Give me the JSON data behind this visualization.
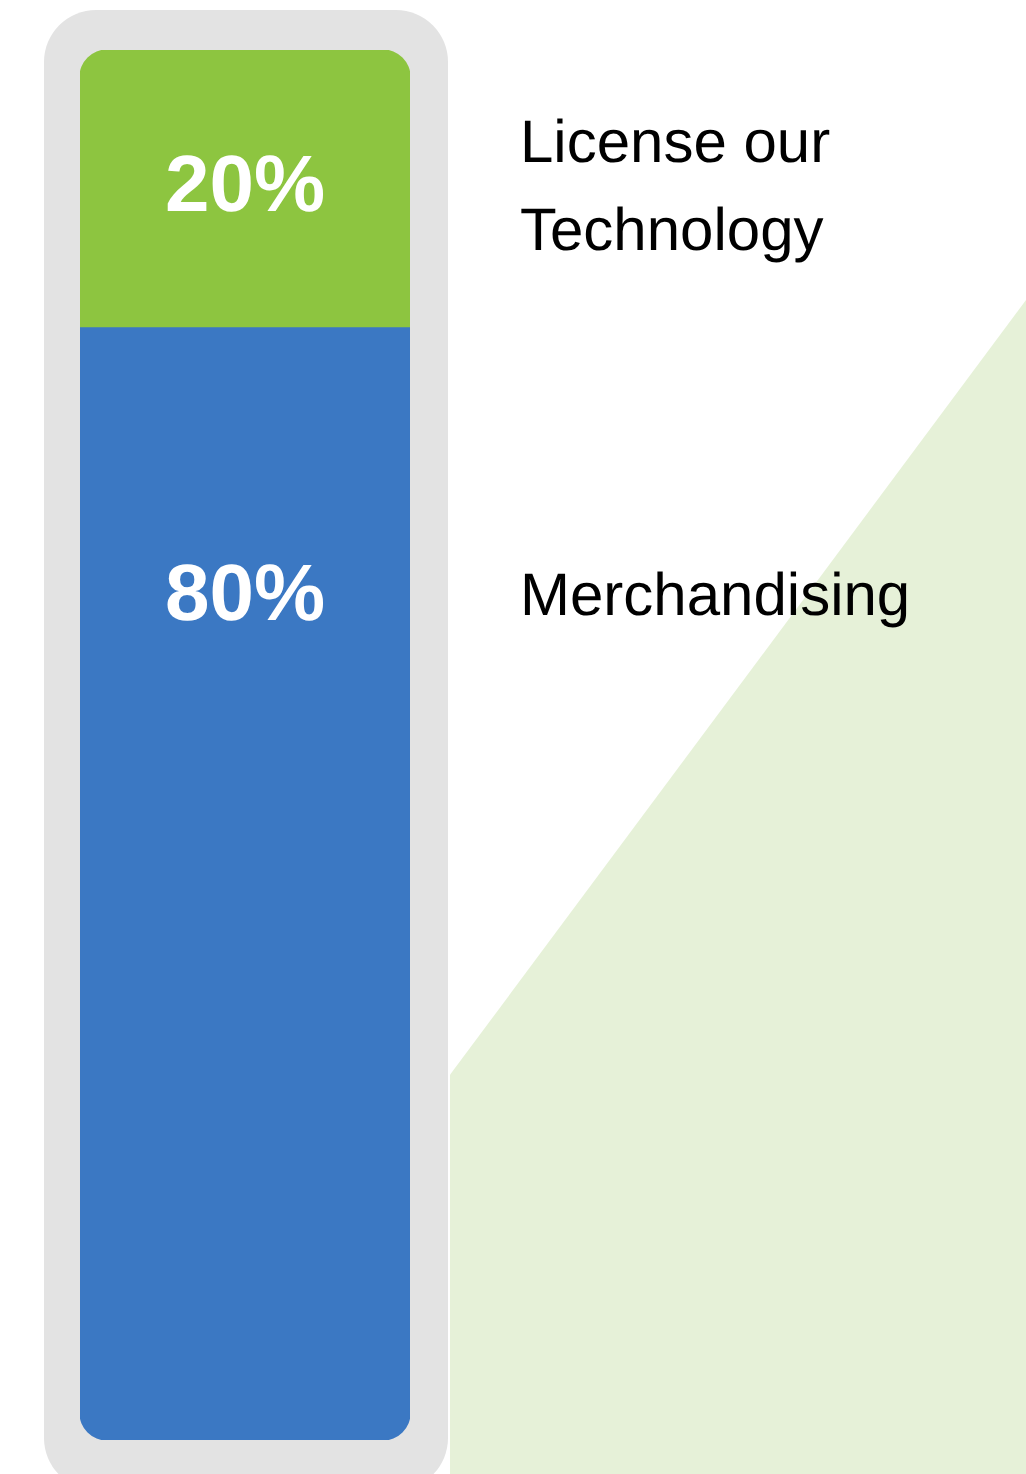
{
  "chart_data": {
    "type": "bar",
    "stacked": true,
    "categories": [
      null
    ],
    "ylim": [
      0,
      100
    ],
    "tick_labels": false,
    "legend": false,
    "series": [
      {
        "name": "Merchandising",
        "color": "#3b78c3",
        "values": [
          80
        ],
        "value_labels": [
          "80%"
        ]
      },
      {
        "name": "License our Technology",
        "color": "#8dc540",
        "values": [
          20
        ],
        "value_labels": [
          "20%"
        ]
      }
    ]
  }
}
